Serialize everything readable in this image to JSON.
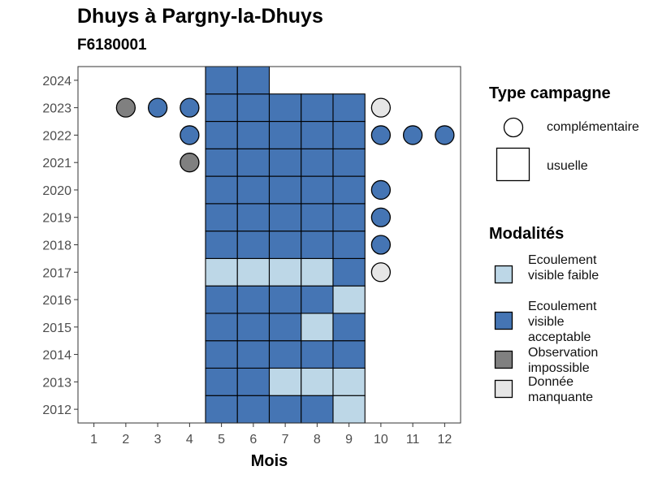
{
  "chart_data": {
    "type": "heatmap",
    "title": "Dhuys à Pargny-la-Dhuys",
    "subtitle": "F6180001",
    "xlabel": "Mois",
    "ylabel": "",
    "x_ticks": [
      "1",
      "2",
      "3",
      "4",
      "5",
      "6",
      "7",
      "8",
      "9",
      "10",
      "11",
      "12"
    ],
    "y_ticks": [
      "2012",
      "2013",
      "2014",
      "2015",
      "2016",
      "2017",
      "2018",
      "2019",
      "2020",
      "2021",
      "2022",
      "2023",
      "2024"
    ],
    "xlim": [
      0.5,
      12.5
    ],
    "ylim": [
      2011.5,
      2024.5
    ],
    "grid": false,
    "legend_position": "right",
    "colors": {
      "faible": "#bdd7e7",
      "acceptable": "#4575b4",
      "impossible": "#808080",
      "manquante": "#e6e6e6"
    },
    "legend_type": {
      "title": "Type campagne",
      "items": [
        {
          "label": "complémentaire",
          "shape": "circle"
        },
        {
          "label": "usuelle",
          "shape": "square"
        }
      ]
    },
    "legend_modalites": {
      "title": "Modalités",
      "items": [
        {
          "key": "faible",
          "label": "Ecoulement visible faible"
        },
        {
          "key": "acceptable",
          "label": "Ecoulement visible acceptable"
        },
        {
          "key": "impossible",
          "label": "Observation impossible"
        },
        {
          "key": "manquante",
          "label": "Donnée manquante"
        }
      ]
    },
    "observations": [
      {
        "year": 2012,
        "month": 5,
        "type": "usuelle",
        "modalite": "acceptable"
      },
      {
        "year": 2012,
        "month": 6,
        "type": "usuelle",
        "modalite": "acceptable"
      },
      {
        "year": 2012,
        "month": 7,
        "type": "usuelle",
        "modalite": "acceptable"
      },
      {
        "year": 2012,
        "month": 8,
        "type": "usuelle",
        "modalite": "acceptable"
      },
      {
        "year": 2012,
        "month": 9,
        "type": "usuelle",
        "modalite": "faible"
      },
      {
        "year": 2013,
        "month": 5,
        "type": "usuelle",
        "modalite": "acceptable"
      },
      {
        "year": 2013,
        "month": 6,
        "type": "usuelle",
        "modalite": "acceptable"
      },
      {
        "year": 2013,
        "month": 7,
        "type": "usuelle",
        "modalite": "faible"
      },
      {
        "year": 2013,
        "month": 8,
        "type": "usuelle",
        "modalite": "faible"
      },
      {
        "year": 2013,
        "month": 9,
        "type": "usuelle",
        "modalite": "faible"
      },
      {
        "year": 2014,
        "month": 5,
        "type": "usuelle",
        "modalite": "acceptable"
      },
      {
        "year": 2014,
        "month": 6,
        "type": "usuelle",
        "modalite": "acceptable"
      },
      {
        "year": 2014,
        "month": 7,
        "type": "usuelle",
        "modalite": "acceptable"
      },
      {
        "year": 2014,
        "month": 8,
        "type": "usuelle",
        "modalite": "acceptable"
      },
      {
        "year": 2014,
        "month": 9,
        "type": "usuelle",
        "modalite": "acceptable"
      },
      {
        "year": 2015,
        "month": 5,
        "type": "usuelle",
        "modalite": "acceptable"
      },
      {
        "year": 2015,
        "month": 6,
        "type": "usuelle",
        "modalite": "acceptable"
      },
      {
        "year": 2015,
        "month": 7,
        "type": "usuelle",
        "modalite": "acceptable"
      },
      {
        "year": 2015,
        "month": 8,
        "type": "usuelle",
        "modalite": "faible"
      },
      {
        "year": 2015,
        "month": 9,
        "type": "usuelle",
        "modalite": "acceptable"
      },
      {
        "year": 2016,
        "month": 5,
        "type": "usuelle",
        "modalite": "acceptable"
      },
      {
        "year": 2016,
        "month": 6,
        "type": "usuelle",
        "modalite": "acceptable"
      },
      {
        "year": 2016,
        "month": 7,
        "type": "usuelle",
        "modalite": "acceptable"
      },
      {
        "year": 2016,
        "month": 8,
        "type": "usuelle",
        "modalite": "acceptable"
      },
      {
        "year": 2016,
        "month": 9,
        "type": "usuelle",
        "modalite": "faible"
      },
      {
        "year": 2017,
        "month": 5,
        "type": "usuelle",
        "modalite": "faible"
      },
      {
        "year": 2017,
        "month": 6,
        "type": "usuelle",
        "modalite": "faible"
      },
      {
        "year": 2017,
        "month": 7,
        "type": "usuelle",
        "modalite": "faible"
      },
      {
        "year": 2017,
        "month": 8,
        "type": "usuelle",
        "modalite": "faible"
      },
      {
        "year": 2017,
        "month": 9,
        "type": "usuelle",
        "modalite": "acceptable"
      },
      {
        "year": 2017,
        "month": 10,
        "type": "complémentaire",
        "modalite": "manquante"
      },
      {
        "year": 2018,
        "month": 5,
        "type": "usuelle",
        "modalite": "acceptable"
      },
      {
        "year": 2018,
        "month": 6,
        "type": "usuelle",
        "modalite": "acceptable"
      },
      {
        "year": 2018,
        "month": 7,
        "type": "usuelle",
        "modalite": "acceptable"
      },
      {
        "year": 2018,
        "month": 8,
        "type": "usuelle",
        "modalite": "acceptable"
      },
      {
        "year": 2018,
        "month": 9,
        "type": "usuelle",
        "modalite": "acceptable"
      },
      {
        "year": 2018,
        "month": 10,
        "type": "complémentaire",
        "modalite": "acceptable"
      },
      {
        "year": 2019,
        "month": 5,
        "type": "usuelle",
        "modalite": "acceptable"
      },
      {
        "year": 2019,
        "month": 6,
        "type": "usuelle",
        "modalite": "acceptable"
      },
      {
        "year": 2019,
        "month": 7,
        "type": "usuelle",
        "modalite": "acceptable"
      },
      {
        "year": 2019,
        "month": 8,
        "type": "usuelle",
        "modalite": "acceptable"
      },
      {
        "year": 2019,
        "month": 9,
        "type": "usuelle",
        "modalite": "acceptable"
      },
      {
        "year": 2019,
        "month": 10,
        "type": "complémentaire",
        "modalite": "acceptable"
      },
      {
        "year": 2020,
        "month": 5,
        "type": "usuelle",
        "modalite": "acceptable"
      },
      {
        "year": 2020,
        "month": 6,
        "type": "usuelle",
        "modalite": "acceptable"
      },
      {
        "year": 2020,
        "month": 7,
        "type": "usuelle",
        "modalite": "acceptable"
      },
      {
        "year": 2020,
        "month": 8,
        "type": "usuelle",
        "modalite": "acceptable"
      },
      {
        "year": 2020,
        "month": 9,
        "type": "usuelle",
        "modalite": "acceptable"
      },
      {
        "year": 2020,
        "month": 10,
        "type": "complémentaire",
        "modalite": "acceptable"
      },
      {
        "year": 2021,
        "month": 4,
        "type": "complémentaire",
        "modalite": "impossible"
      },
      {
        "year": 2021,
        "month": 5,
        "type": "usuelle",
        "modalite": "acceptable"
      },
      {
        "year": 2021,
        "month": 6,
        "type": "usuelle",
        "modalite": "acceptable"
      },
      {
        "year": 2021,
        "month": 7,
        "type": "usuelle",
        "modalite": "acceptable"
      },
      {
        "year": 2021,
        "month": 8,
        "type": "usuelle",
        "modalite": "acceptable"
      },
      {
        "year": 2021,
        "month": 9,
        "type": "usuelle",
        "modalite": "acceptable"
      },
      {
        "year": 2022,
        "month": 4,
        "type": "complémentaire",
        "modalite": "acceptable"
      },
      {
        "year": 2022,
        "month": 5,
        "type": "usuelle",
        "modalite": "acceptable"
      },
      {
        "year": 2022,
        "month": 6,
        "type": "usuelle",
        "modalite": "acceptable"
      },
      {
        "year": 2022,
        "month": 7,
        "type": "usuelle",
        "modalite": "acceptable"
      },
      {
        "year": 2022,
        "month": 8,
        "type": "usuelle",
        "modalite": "acceptable"
      },
      {
        "year": 2022,
        "month": 9,
        "type": "usuelle",
        "modalite": "acceptable"
      },
      {
        "year": 2022,
        "month": 10,
        "type": "complémentaire",
        "modalite": "acceptable"
      },
      {
        "year": 2022,
        "month": 11,
        "type": "complémentaire",
        "modalite": "acceptable"
      },
      {
        "year": 2022,
        "month": 12,
        "type": "complémentaire",
        "modalite": "acceptable"
      },
      {
        "year": 2023,
        "month": 2,
        "type": "complémentaire",
        "modalite": "impossible"
      },
      {
        "year": 2023,
        "month": 3,
        "type": "complémentaire",
        "modalite": "acceptable"
      },
      {
        "year": 2023,
        "month": 4,
        "type": "complémentaire",
        "modalite": "acceptable"
      },
      {
        "year": 2023,
        "month": 5,
        "type": "usuelle",
        "modalite": "acceptable"
      },
      {
        "year": 2023,
        "month": 6,
        "type": "usuelle",
        "modalite": "acceptable"
      },
      {
        "year": 2023,
        "month": 7,
        "type": "usuelle",
        "modalite": "acceptable"
      },
      {
        "year": 2023,
        "month": 8,
        "type": "usuelle",
        "modalite": "acceptable"
      },
      {
        "year": 2023,
        "month": 9,
        "type": "usuelle",
        "modalite": "acceptable"
      },
      {
        "year": 2023,
        "month": 10,
        "type": "complémentaire",
        "modalite": "manquante"
      },
      {
        "year": 2024,
        "month": 5,
        "type": "usuelle",
        "modalite": "acceptable"
      },
      {
        "year": 2024,
        "month": 6,
        "type": "usuelle",
        "modalite": "acceptable"
      }
    ]
  }
}
